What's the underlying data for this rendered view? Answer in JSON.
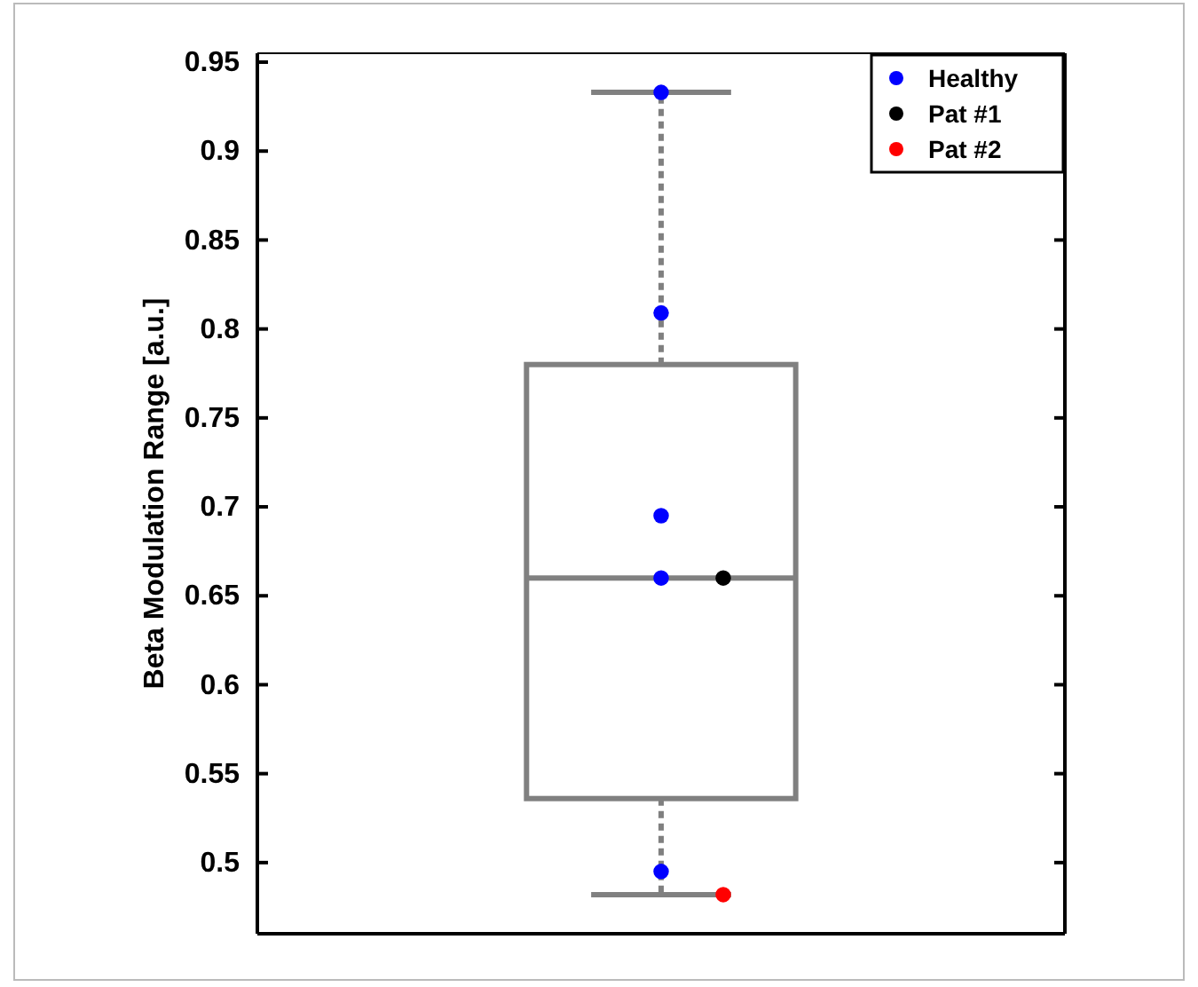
{
  "chart_data": {
    "type": "box",
    "ylabel": "Beta Modulation Range [a.u.]",
    "categories": [
      null
    ],
    "series": [
      {
        "color": "#808080",
        "boxes": [
          {
            "low": 0.482,
            "q1": 0.536,
            "median": 0.66,
            "q3": 0.78,
            "high": 0.933
          }
        ]
      },
      {
        "type": "scatter",
        "name": "Healthy",
        "color": "#0000ff",
        "x": [
          null,
          null,
          null,
          null,
          null
        ],
        "values": [
          0.933,
          0.809,
          0.695,
          0.66,
          0.495
        ]
      },
      {
        "type": "scatter",
        "name": "Pat #1",
        "color": "#000000",
        "x": [
          null
        ],
        "values": [
          0.66
        ]
      },
      {
        "type": "scatter",
        "name": "Pat #2",
        "color": "#ff0000",
        "x": [
          null
        ],
        "values": [
          0.482
        ]
      }
    ],
    "ylim": [
      0.46,
      0.955
    ],
    "yticks": [
      0.5,
      0.55,
      0.6,
      0.65,
      0.7,
      0.75,
      0.8,
      0.85,
      0.9,
      0.95
    ],
    "tick_labels": "y",
    "grid": false,
    "legend": "top right",
    "marker": "circle"
  }
}
